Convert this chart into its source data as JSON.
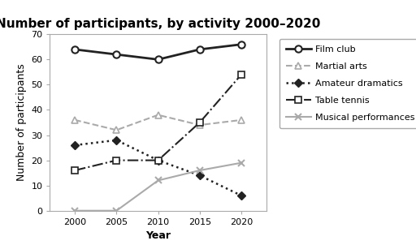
{
  "title": "Number of participants, by activity 2000–2020",
  "xlabel": "Year",
  "ylabel": "Number of participants",
  "years": [
    2000,
    2005,
    2010,
    2015,
    2020
  ],
  "series": {
    "Film club": {
      "values": [
        64,
        62,
        60,
        64,
        66
      ],
      "color": "#222222",
      "linestyle": "-",
      "marker": "o",
      "linewidth": 2.0,
      "markersize": 6,
      "markerfacecolor": "white",
      "markeredgewidth": 1.5
    },
    "Martial arts": {
      "values": [
        36,
        32,
        38,
        34,
        36
      ],
      "color": "#aaaaaa",
      "linestyle": "--",
      "marker": "^",
      "linewidth": 1.5,
      "markersize": 6,
      "markerfacecolor": "white",
      "markeredgewidth": 1.2
    },
    "Amateur dramatics": {
      "values": [
        26,
        28,
        20,
        14,
        6
      ],
      "color": "#222222",
      "linestyle": ":",
      "marker": "D",
      "linewidth": 1.8,
      "markersize": 5,
      "markerfacecolor": "#222222",
      "markeredgewidth": 1.0
    },
    "Table tennis": {
      "values": [
        16,
        20,
        20,
        35,
        54
      ],
      "color": "#222222",
      "linestyle": "-.",
      "marker": "s",
      "linewidth": 1.5,
      "markersize": 6,
      "markerfacecolor": "white",
      "markeredgewidth": 1.2
    },
    "Musical performances": {
      "values": [
        0,
        0,
        12,
        16,
        19
      ],
      "color": "#aaaaaa",
      "linestyle": "-",
      "marker": "x",
      "linewidth": 1.5,
      "markersize": 6,
      "markerfacecolor": "#aaaaaa",
      "markeredgewidth": 1.5
    }
  },
  "ylim": [
    0,
    70
  ],
  "yticks": [
    0,
    10,
    20,
    30,
    40,
    50,
    60,
    70
  ],
  "xticks": [
    2000,
    2005,
    2010,
    2015,
    2020
  ],
  "xlim": [
    1997,
    2023
  ],
  "legend_order": [
    "Film club",
    "Martial arts",
    "Amateur dramatics",
    "Table tennis",
    "Musical performances"
  ],
  "background_color": "#ffffff",
  "title_fontsize": 11,
  "axis_label_fontsize": 9,
  "tick_fontsize": 8,
  "legend_fontsize": 8
}
